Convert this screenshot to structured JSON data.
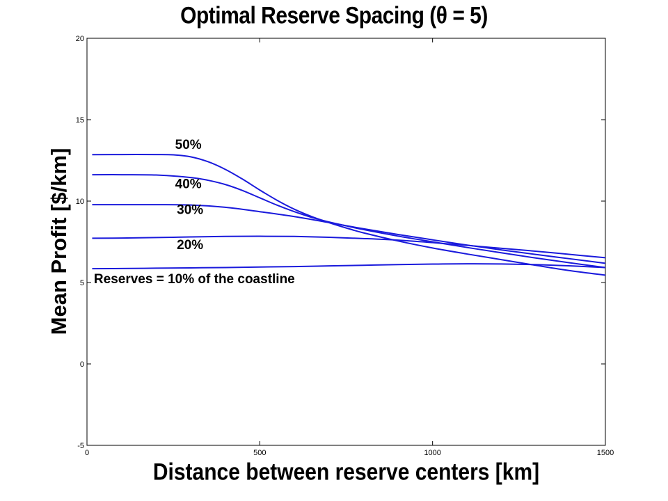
{
  "chart_data": {
    "type": "line",
    "title": "Optimal Reserve Spacing (θ = 5)",
    "xlabel": "Distance between reserve centers [km]",
    "ylabel": "Mean Profit [$/km]",
    "xlim": [
      0,
      1500
    ],
    "ylim": [
      -5,
      20
    ],
    "xticks": [
      0,
      500,
      1000,
      1500
    ],
    "yticks": [
      -5,
      0,
      5,
      10,
      15,
      20
    ],
    "grid": false,
    "line_color": "#1a1adc",
    "series": [
      {
        "name": "50%",
        "x": [
          15,
          100,
          200,
          250,
          300,
          350,
          400,
          450,
          500,
          550,
          600,
          650,
          700,
          750,
          800,
          900,
          1000,
          1100,
          1200,
          1300,
          1400,
          1500
        ],
        "y": [
          12.85,
          12.86,
          12.86,
          12.84,
          12.72,
          12.42,
          11.95,
          11.35,
          10.68,
          10.05,
          9.5,
          9.05,
          8.68,
          8.35,
          8.05,
          7.55,
          7.12,
          6.75,
          6.4,
          6.05,
          5.72,
          5.45
        ]
      },
      {
        "name": "40%",
        "x": [
          15,
          100,
          200,
          300,
          350,
          400,
          450,
          500,
          550,
          600,
          650,
          700,
          750,
          800,
          900,
          1000,
          1100,
          1200,
          1300,
          1400,
          1500
        ],
        "y": [
          11.62,
          11.62,
          11.6,
          11.45,
          11.28,
          11.02,
          10.65,
          10.2,
          9.75,
          9.35,
          9.0,
          8.72,
          8.48,
          8.25,
          7.85,
          7.5,
          7.15,
          6.82,
          6.5,
          6.2,
          5.92
        ]
      },
      {
        "name": "30%",
        "x": [
          15,
          100,
          200,
          300,
          400,
          500,
          600,
          700,
          800,
          900,
          1000,
          1100,
          1200,
          1300,
          1400,
          1500
        ],
        "y": [
          9.78,
          9.78,
          9.78,
          9.76,
          9.62,
          9.35,
          9.05,
          8.68,
          8.3,
          7.95,
          7.62,
          7.3,
          7.0,
          6.72,
          6.45,
          6.18
        ]
      },
      {
        "name": "20%",
        "x": [
          15,
          100,
          200,
          300,
          400,
          500,
          600,
          700,
          800,
          900,
          1000,
          1100,
          1200,
          1300,
          1400,
          1500
        ],
        "y": [
          7.72,
          7.73,
          7.76,
          7.8,
          7.83,
          7.84,
          7.83,
          7.78,
          7.7,
          7.6,
          7.45,
          7.28,
          7.1,
          6.92,
          6.72,
          6.52
        ]
      },
      {
        "name": "Reserves = 10% of the coastline",
        "x": [
          15,
          100,
          200,
          300,
          400,
          500,
          600,
          700,
          800,
          900,
          1000,
          1100,
          1200,
          1300,
          1400,
          1500
        ],
        "y": [
          5.85,
          5.86,
          5.88,
          5.9,
          5.92,
          5.95,
          5.98,
          6.02,
          6.06,
          6.1,
          6.13,
          6.15,
          6.14,
          6.1,
          6.02,
          5.92
        ]
      }
    ],
    "annotations": [
      {
        "text": "50%",
        "x": 255,
        "y": 13.2
      },
      {
        "text": "40%",
        "x": 255,
        "y": 10.8
      },
      {
        "text": "30%",
        "x": 260,
        "y": 9.2
      },
      {
        "text": "20%",
        "x": 260,
        "y": 7.05
      },
      {
        "text": "Reserves = 10% of the coastline",
        "x": 20,
        "y": 4.95
      }
    ]
  }
}
